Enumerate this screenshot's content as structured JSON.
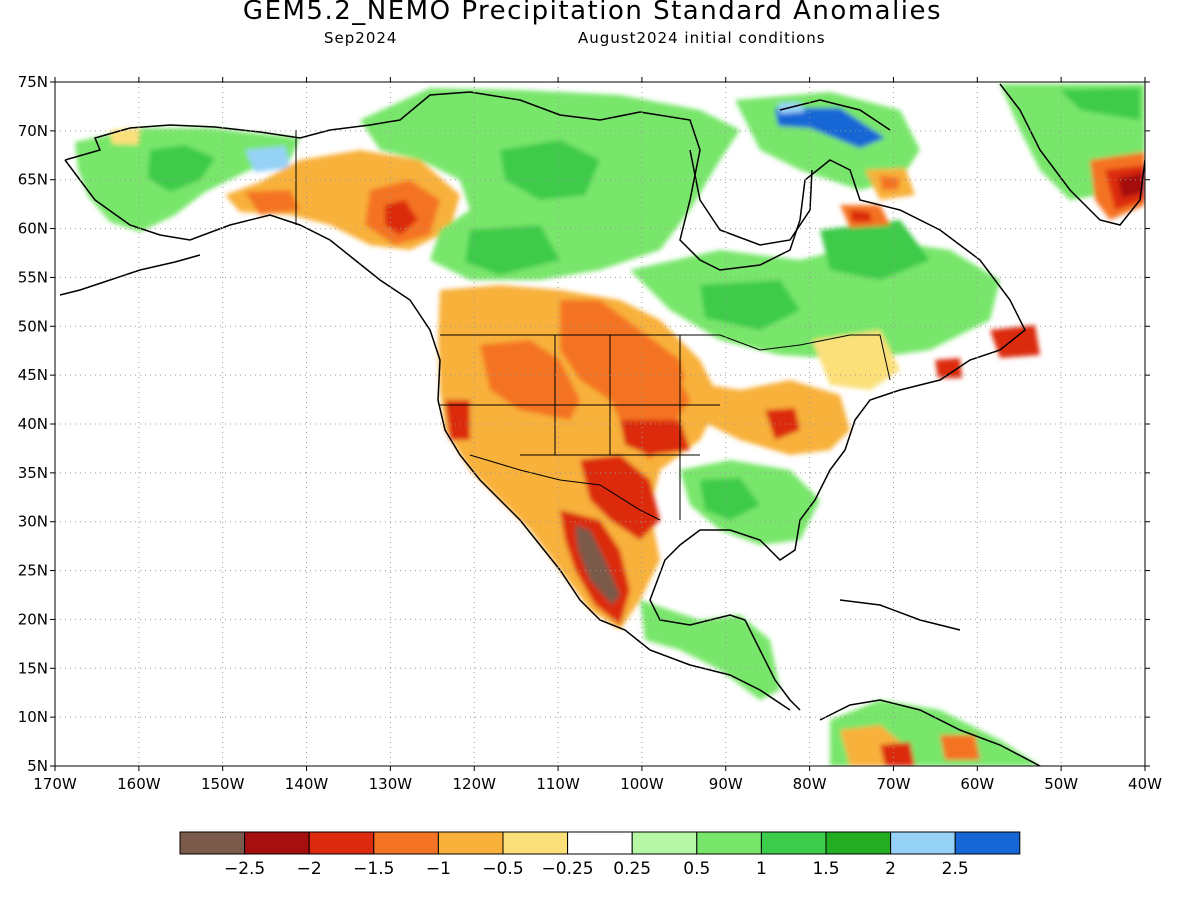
{
  "title": "GEM5.2_NEMO Precipitation Standard Anomalies",
  "subtitle_left": "Sep2024",
  "subtitle_right": "August2024 initial conditions",
  "axes": {
    "lat_labels": [
      "75N",
      "70N",
      "65N",
      "60N",
      "55N",
      "50N",
      "45N",
      "40N",
      "35N",
      "30N",
      "25N",
      "20N",
      "15N",
      "10N",
      "5N"
    ],
    "lon_labels": [
      "170W",
      "160W",
      "150W",
      "140W",
      "130W",
      "120W",
      "110W",
      "100W",
      "90W",
      "80W",
      "70W",
      "60W",
      "50W",
      "40W"
    ],
    "lat_range": [
      5,
      75
    ],
    "lon_range": [
      -170,
      -40
    ],
    "grid": "dotted"
  },
  "colorbar": {
    "labels": [
      "-2.5",
      "-2",
      "-1.5",
      "-1",
      "-0.5",
      "-0.25",
      "0.25",
      "0.5",
      "1",
      "1.5",
      "2",
      "2.5"
    ],
    "colors": [
      "#7a5a4a",
      "#a50f0f",
      "#dc2a0e",
      "#f47324",
      "#f8b13a",
      "#fbe07a",
      "#ffffff",
      "#b6f7a6",
      "#78e66a",
      "#3ccb4a",
      "#22ad22",
      "#96d1f6",
      "#1766d6"
    ]
  },
  "chart_data": {
    "type": "heatmap",
    "title": "GEM5.2_NEMO Precipitation Standard Anomalies",
    "regions": [
      {
        "lon": -105,
        "lat": 26,
        "value": -2.6
      },
      {
        "lon": -103,
        "lat": 31,
        "value": -1.8
      },
      {
        "lon": -104,
        "lat": 36,
        "value": -1.3
      },
      {
        "lon": -112,
        "lat": 44,
        "value": -1.3
      },
      {
        "lon": -128,
        "lat": 61,
        "value": -1.4
      },
      {
        "lon": -142,
        "lat": 63,
        "value": -0.8
      },
      {
        "lon": -83,
        "lat": 40,
        "value": -1.7
      },
      {
        "lon": -59,
        "lat": 48,
        "value": -1.8
      },
      {
        "lon": -44,
        "lat": 64,
        "value": -2.1
      },
      {
        "lon": -74,
        "lat": 62,
        "value": -1.2
      },
      {
        "lon": -68,
        "lat": 7,
        "value": -1.7
      },
      {
        "lon": -124,
        "lat": 41,
        "value": -1.2
      },
      {
        "lon": -80,
        "lat": 72,
        "value": 2.3
      },
      {
        "lon": -150,
        "lat": 66,
        "value": 2.1
      },
      {
        "lon": -90,
        "lat": 32,
        "value": 0.9
      },
      {
        "lon": -92,
        "lat": 52,
        "value": 1.2
      },
      {
        "lon": -45,
        "lat": 72,
        "value": 1.1
      }
    ]
  }
}
